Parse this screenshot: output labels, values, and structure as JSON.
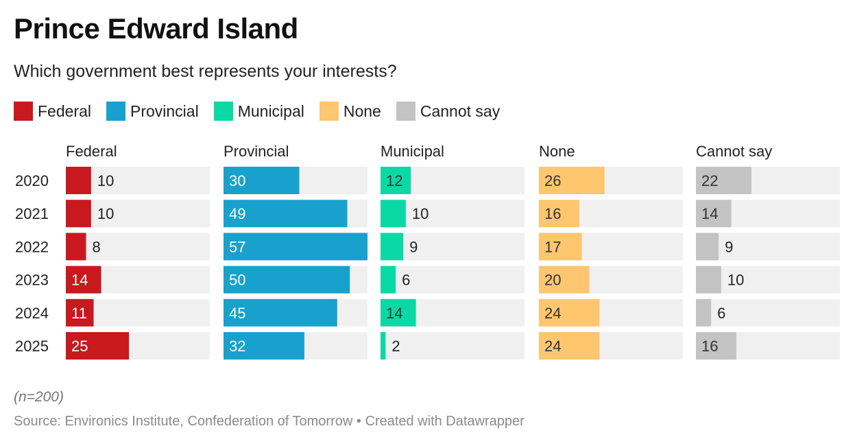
{
  "title": "Prince Edward Island",
  "subtitle": "Which government best represents your interests?",
  "note": "(n=200)",
  "source": "Source: Environics Institute, Confederation of Tomorrow",
  "separator": "•",
  "credit": "Created with Datawrapper",
  "legend": [
    {
      "label": "Federal",
      "color": "#c8191f"
    },
    {
      "label": "Provincial",
      "color": "#18a1cd"
    },
    {
      "label": "Municipal",
      "color": "#0bd9a5"
    },
    {
      "label": "None",
      "color": "#fec66f"
    },
    {
      "label": "Cannot say",
      "color": "#c3c3c3"
    }
  ],
  "chart_data": {
    "type": "bar",
    "orientation": "horizontal",
    "layout": "small-multiples",
    "title": "Prince Edward Island",
    "subtitle": "Which government best represents your interests?",
    "categories": [
      "2020",
      "2021",
      "2022",
      "2023",
      "2024",
      "2025"
    ],
    "xlim": [
      0,
      57
    ],
    "background_track_color": "#f0f0f0",
    "series": [
      {
        "name": "Federal",
        "color": "#c8191f",
        "label_color_inside": "#ffffff",
        "values": [
          10,
          10,
          8,
          14,
          11,
          25
        ]
      },
      {
        "name": "Provincial",
        "color": "#18a1cd",
        "label_color_inside": "#ffffff",
        "values": [
          30,
          49,
          57,
          50,
          45,
          32
        ]
      },
      {
        "name": "Municipal",
        "color": "#0bd9a5",
        "label_color_inside": "#333333",
        "values": [
          12,
          10,
          9,
          6,
          14,
          2
        ]
      },
      {
        "name": "None",
        "color": "#fec66f",
        "label_color_inside": "#333333",
        "values": [
          26,
          16,
          17,
          20,
          24,
          24
        ]
      },
      {
        "name": "Cannot say",
        "color": "#c3c3c3",
        "label_color_inside": "#333333",
        "values": [
          22,
          14,
          9,
          10,
          6,
          16
        ]
      }
    ]
  }
}
